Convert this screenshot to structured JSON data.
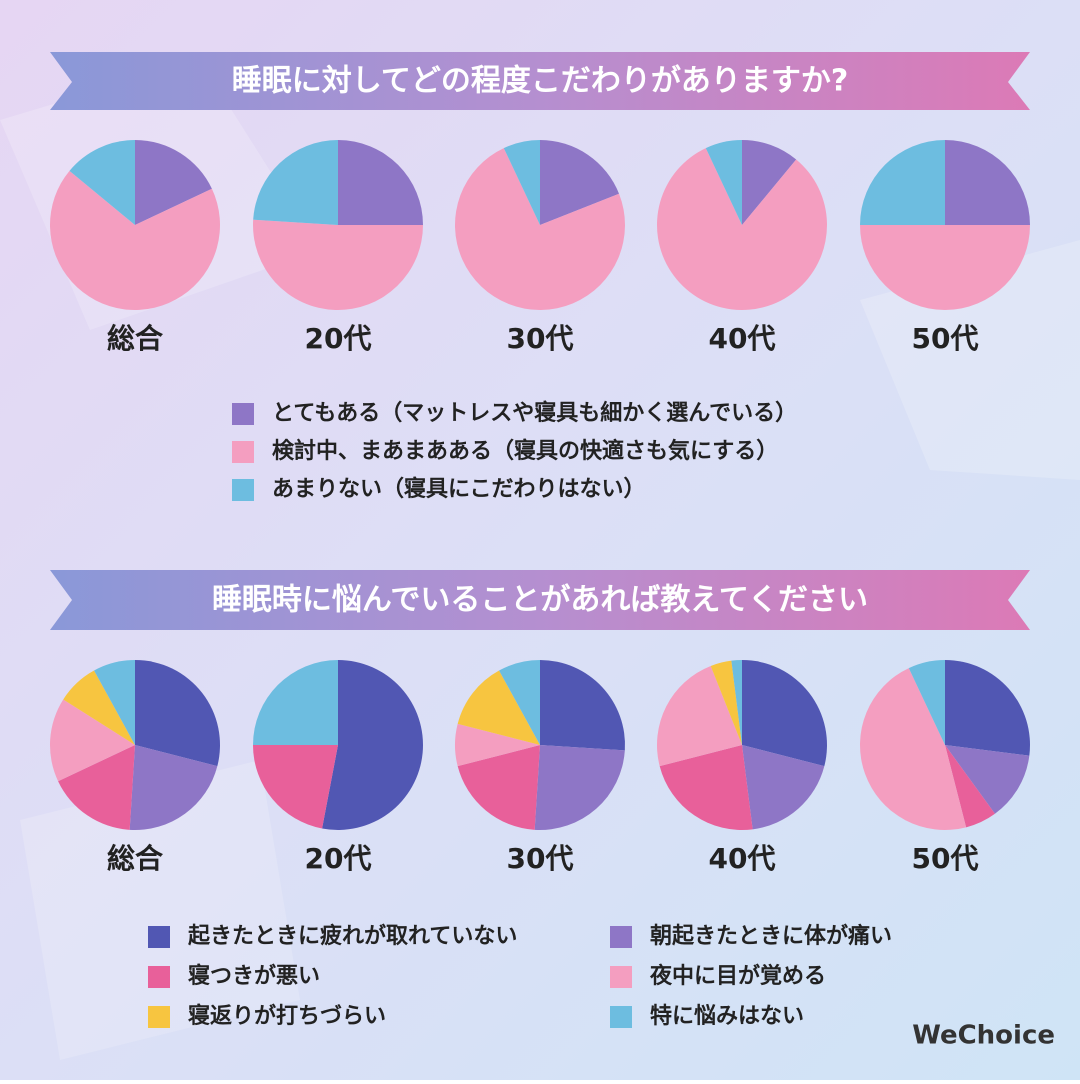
{
  "chart_data": [
    {
      "type": "pie",
      "title": "睡眠に対してどの程度こだわりがありますか?",
      "categories": [
        "とてもある（マットレスや寝具も細かく選んでいる）",
        "検討中、まあまあある（寝具の快適さも気にする）",
        "あまりない（寝具にこだわりはない）"
      ],
      "colors": [
        "#8e76c6",
        "#f49ec0",
        "#6dbde0"
      ],
      "series": [
        {
          "name": "総合",
          "values": [
            18,
            68,
            14
          ]
        },
        {
          "name": "20代",
          "values": [
            25,
            51,
            24
          ]
        },
        {
          "name": "30代",
          "values": [
            19,
            74,
            7
          ]
        },
        {
          "name": "40代",
          "values": [
            11,
            82,
            7
          ]
        },
        {
          "name": "50代",
          "values": [
            25,
            50,
            25
          ]
        }
      ]
    },
    {
      "type": "pie",
      "title": "睡眠時に悩んでいることがあれば教えてください",
      "categories": [
        "起きたときに疲れが取れていない",
        "朝起きたときに体が痛い",
        "寝つきが悪い",
        "夜中に目が覚める",
        "寝返りが打ちづらい",
        "特に悩みはない"
      ],
      "colors": [
        "#5157b3",
        "#8e76c6",
        "#e8609a",
        "#f49ec0",
        "#f7c540",
        "#6dbde0"
      ],
      "series": [
        {
          "name": "総合",
          "values": [
            29,
            22,
            17,
            16,
            8,
            8
          ]
        },
        {
          "name": "20代",
          "values": [
            53,
            0,
            22,
            0,
            0,
            25
          ]
        },
        {
          "name": "30代",
          "values": [
            26,
            25,
            20,
            8,
            13,
            8
          ]
        },
        {
          "name": "40代",
          "values": [
            29,
            19,
            23,
            23,
            4,
            2
          ]
        },
        {
          "name": "50代",
          "values": [
            27,
            13,
            6,
            47,
            0,
            7
          ]
        }
      ]
    }
  ],
  "logo": "WeChoice"
}
